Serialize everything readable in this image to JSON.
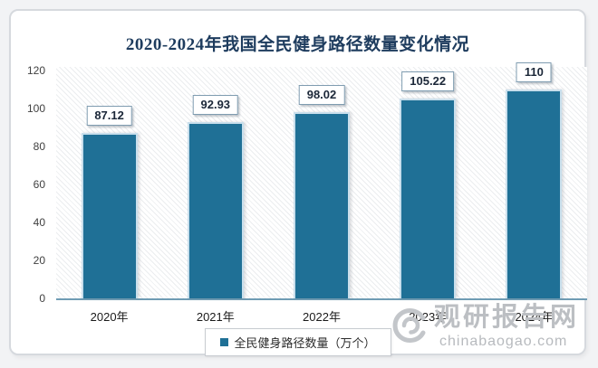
{
  "page": {
    "background": "#f2f3f5",
    "card_background": "#ffffff"
  },
  "chart_data": {
    "type": "bar",
    "title": "2020-2024年我国全民健身路径数量变化情况",
    "title_color": "#1e3c5e",
    "categories": [
      "2020年",
      "2021年",
      "2022年",
      "2023年",
      "2024年"
    ],
    "values": [
      87.12,
      92.93,
      98.02,
      105.22,
      110
    ],
    "data_labels": [
      "87.12",
      "92.93",
      "98.02",
      "105.22",
      "110"
    ],
    "series_name": "全民健身路径数量（万个）",
    "legend_position": "bottom",
    "xlabel": "",
    "ylabel": "",
    "ylim": [
      0,
      120
    ],
    "yticks": [
      0,
      20,
      40,
      60,
      80,
      100,
      120
    ],
    "grid": false,
    "bar_color": "#1f7096",
    "plot_hatch": "diagonal-stripes"
  },
  "legend": {
    "label": "全民健身路径数量（万个）"
  },
  "watermark": {
    "logo": "swirl-eye-logo",
    "site_name": "观研报告网",
    "site_url": "chinabaogao.com"
  }
}
